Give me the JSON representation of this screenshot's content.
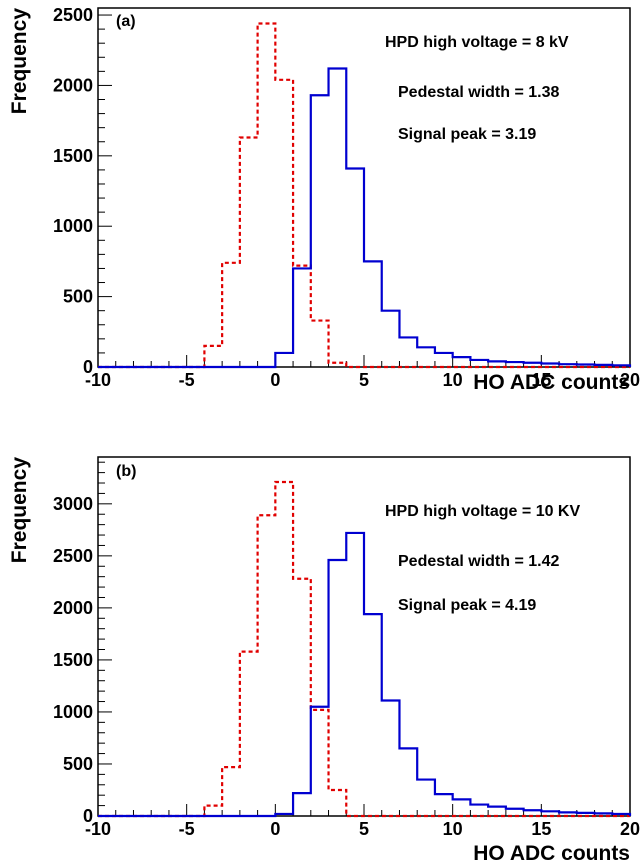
{
  "chart_data": [
    {
      "type": "histogram",
      "panel_label": "(a)",
      "xlabel": "HO ADC counts",
      "ylabel": "Frequency",
      "xlim": [
        -10,
        20
      ],
      "ylim": [
        0,
        2550
      ],
      "x_ticks": [
        -10,
        -5,
        0,
        5,
        10,
        15,
        20
      ],
      "y_ticks": [
        0,
        500,
        1000,
        1500,
        2000,
        2500
      ],
      "bin_edges": [
        -10,
        -9,
        -8,
        -7,
        -6,
        -5,
        -4,
        -3,
        -2,
        -1,
        0,
        1,
        2,
        3,
        4,
        5,
        6,
        7,
        8,
        9,
        10,
        11,
        12,
        13,
        14,
        15,
        16,
        17,
        18,
        19,
        20
      ],
      "annotations": [
        "HPD high voltage = 8 kV",
        "Pedestal width = 1.38",
        "Signal peak = 3.19"
      ],
      "series": [
        {
          "style": "dashed",
          "color": "#e00000",
          "values": [
            0,
            0,
            0,
            0,
            0,
            0,
            150,
            740,
            1630,
            2440,
            2040,
            720,
            330,
            30,
            0,
            0,
            0,
            0,
            0,
            0,
            0,
            0,
            0,
            0,
            0,
            0,
            0,
            0,
            0,
            0
          ]
        },
        {
          "style": "solid",
          "color": "#0000d0",
          "values": [
            0,
            0,
            0,
            0,
            0,
            0,
            0,
            0,
            0,
            0,
            100,
            700,
            1930,
            2120,
            1410,
            750,
            400,
            210,
            140,
            100,
            70,
            50,
            40,
            35,
            30,
            25,
            20,
            18,
            15,
            12
          ]
        }
      ]
    },
    {
      "type": "histogram",
      "panel_label": "(b)",
      "xlabel": "HO ADC counts",
      "ylabel": "Frequency",
      "xlim": [
        -10,
        20
      ],
      "ylim": [
        0,
        3450
      ],
      "x_ticks": [
        -10,
        -5,
        0,
        5,
        10,
        15,
        20
      ],
      "y_ticks": [
        0,
        500,
        1000,
        1500,
        2000,
        2500,
        3000
      ],
      "bin_edges": [
        -10,
        -9,
        -8,
        -7,
        -6,
        -5,
        -4,
        -3,
        -2,
        -1,
        0,
        1,
        2,
        3,
        4,
        5,
        6,
        7,
        8,
        9,
        10,
        11,
        12,
        13,
        14,
        15,
        16,
        17,
        18,
        19,
        20
      ],
      "annotations": [
        "HPD high voltage = 10 KV",
        "Pedestal width = 1.42",
        "Signal peak = 4.19"
      ],
      "series": [
        {
          "style": "dashed",
          "color": "#e00000",
          "values": [
            0,
            0,
            0,
            0,
            0,
            0,
            100,
            470,
            1580,
            2890,
            3210,
            2280,
            1020,
            250,
            0,
            0,
            0,
            0,
            0,
            0,
            0,
            0,
            0,
            0,
            0,
            0,
            0,
            0,
            0,
            0
          ]
        },
        {
          "style": "solid",
          "color": "#0000d0",
          "values": [
            0,
            0,
            0,
            0,
            0,
            0,
            0,
            0,
            0,
            0,
            20,
            220,
            1050,
            2460,
            2720,
            1940,
            1110,
            650,
            350,
            210,
            160,
            110,
            90,
            70,
            55,
            45,
            35,
            30,
            25,
            20
          ]
        }
      ]
    }
  ]
}
